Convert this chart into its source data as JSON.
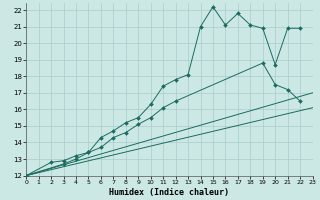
{
  "xlabel": "Humidex (Indice chaleur)",
  "bg_color": "#cce8e4",
  "grid_color": "#aacccc",
  "line_color": "#1a6b60",
  "xlim": [
    0,
    23
  ],
  "ylim": [
    12,
    22.4
  ],
  "xtick_labels": [
    "0",
    "1",
    "2",
    "3",
    "4",
    "5",
    "6",
    "7",
    "8",
    "9",
    "10",
    "11",
    "12",
    "13",
    "14",
    "15",
    "16",
    "17",
    "18",
    "19",
    "20",
    "21",
    "22",
    "23"
  ],
  "ytick_labels": [
    "12",
    "13",
    "14",
    "15",
    "16",
    "17",
    "18",
    "19",
    "20",
    "21",
    "22"
  ],
  "ytick_vals": [
    12,
    13,
    14,
    15,
    16,
    17,
    18,
    19,
    20,
    21,
    22
  ],
  "series1_x": [
    0,
    2,
    3,
    4,
    5,
    6,
    7,
    8,
    9,
    10,
    11,
    12,
    13,
    14,
    15,
    16,
    17,
    18,
    19,
    20,
    21,
    22
  ],
  "series1_y": [
    12.0,
    12.8,
    12.9,
    13.2,
    13.4,
    14.3,
    14.7,
    15.2,
    15.5,
    16.3,
    17.4,
    17.8,
    18.1,
    21.0,
    22.2,
    21.1,
    21.8,
    21.1,
    20.9,
    18.7,
    20.9,
    20.9
  ],
  "series2_x": [
    0,
    3,
    4,
    5,
    6,
    7,
    8,
    9,
    10,
    11,
    12,
    19,
    20,
    21,
    22
  ],
  "series2_y": [
    12.0,
    12.7,
    13.0,
    13.4,
    13.7,
    14.3,
    14.6,
    15.1,
    15.5,
    16.1,
    16.5,
    18.8,
    17.5,
    17.2,
    16.5
  ],
  "series3_x": [
    0,
    23
  ],
  "series3_y": [
    12.0,
    16.1
  ],
  "series4_x": [
    0,
    23
  ],
  "series4_y": [
    12.0,
    17.0
  ]
}
